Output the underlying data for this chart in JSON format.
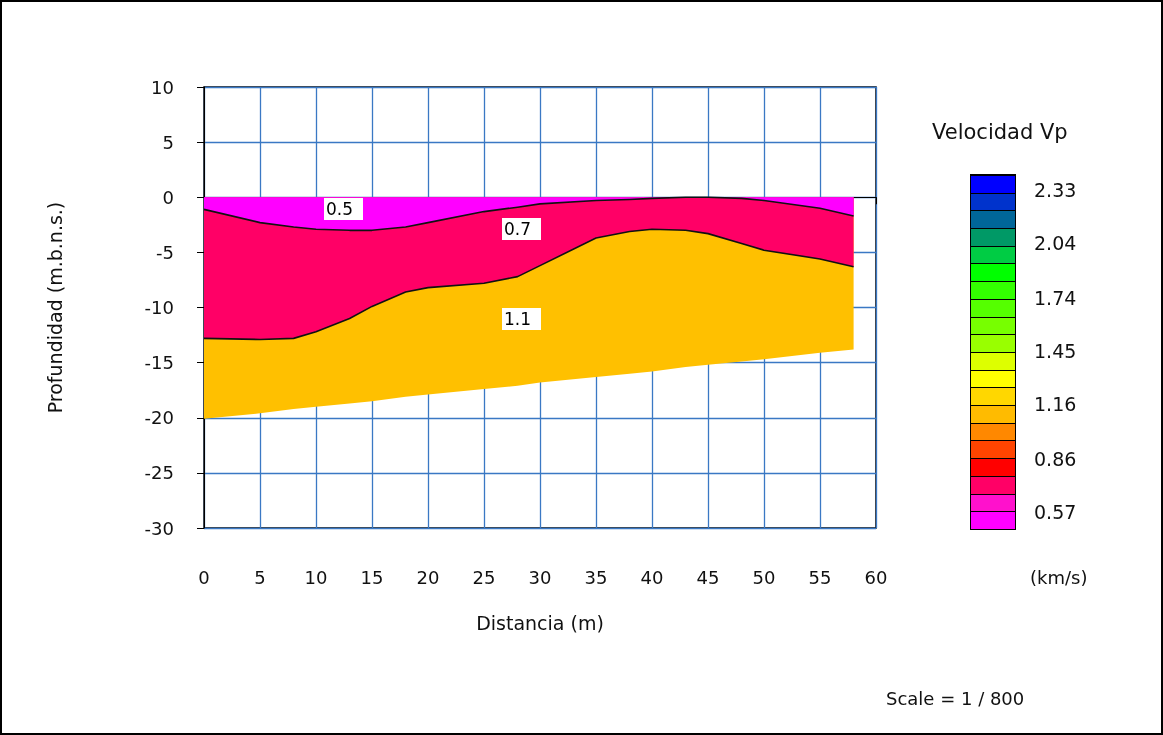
{
  "chart_data": {
    "type": "area",
    "stacked": true,
    "xlabel": "Distancia (m)",
    "ylabel": "Profundidad (m.b.n.s.)",
    "x": [
      0,
      5,
      8,
      10,
      13,
      15,
      18,
      20,
      25,
      28,
      30,
      35,
      38,
      40,
      43,
      45,
      48,
      50,
      55,
      58
    ],
    "series": [
      {
        "color": "#ff00ff",
        "values": [
          -1.1,
          -2.3,
          -2.7,
          -2.9,
          -3.0,
          -3.0,
          -2.7,
          -2.3,
          -1.3,
          -0.9,
          -0.6,
          -0.3,
          -0.2,
          -0.1,
          0,
          0,
          -0.1,
          -0.3,
          -1.0,
          -1.7
        ]
      },
      {
        "color": "#ff0066",
        "values": [
          -11.7,
          -10.6,
          -10.1,
          -9.3,
          -8.0,
          -6.9,
          -5.9,
          -5.9,
          -6.5,
          -6.3,
          -5.6,
          -3.4,
          -2.9,
          -2.8,
          -3.0,
          -3.3,
          -4.1,
          -4.5,
          -4.6,
          -4.6
        ]
      },
      {
        "color": "#ffc000",
        "values": [
          -7.3,
          -6.7,
          -6.4,
          -6.8,
          -7.7,
          -8.6,
          -9.5,
          -9.7,
          -9.6,
          -9.9,
          -10.6,
          -12.6,
          -12.9,
          -12.9,
          -12.4,
          -11.9,
          -10.7,
          -9.9,
          -8.5,
          -7.5
        ]
      }
    ],
    "xlim": [
      0,
      60
    ],
    "xticks": [
      0,
      5,
      10,
      15,
      20,
      25,
      30,
      35,
      40,
      45,
      50,
      55,
      60
    ],
    "ylim": [
      -30,
      10
    ],
    "yticks": [
      -30,
      -25,
      -20,
      -15,
      -10,
      -5,
      0,
      5,
      10
    ],
    "grid": true,
    "marker": "none",
    "clabel": "Velocidad Vp",
    "clim": [
      0.47,
      2.42
    ],
    "cticks": [
      0.57,
      0.86,
      1.16,
      1.45,
      1.74,
      2.04,
      2.33
    ],
    "annotations": [
      "0.5",
      "0.7",
      "1.1",
      "(km/s)",
      "Scale = 1 / 800"
    ]
  }
}
